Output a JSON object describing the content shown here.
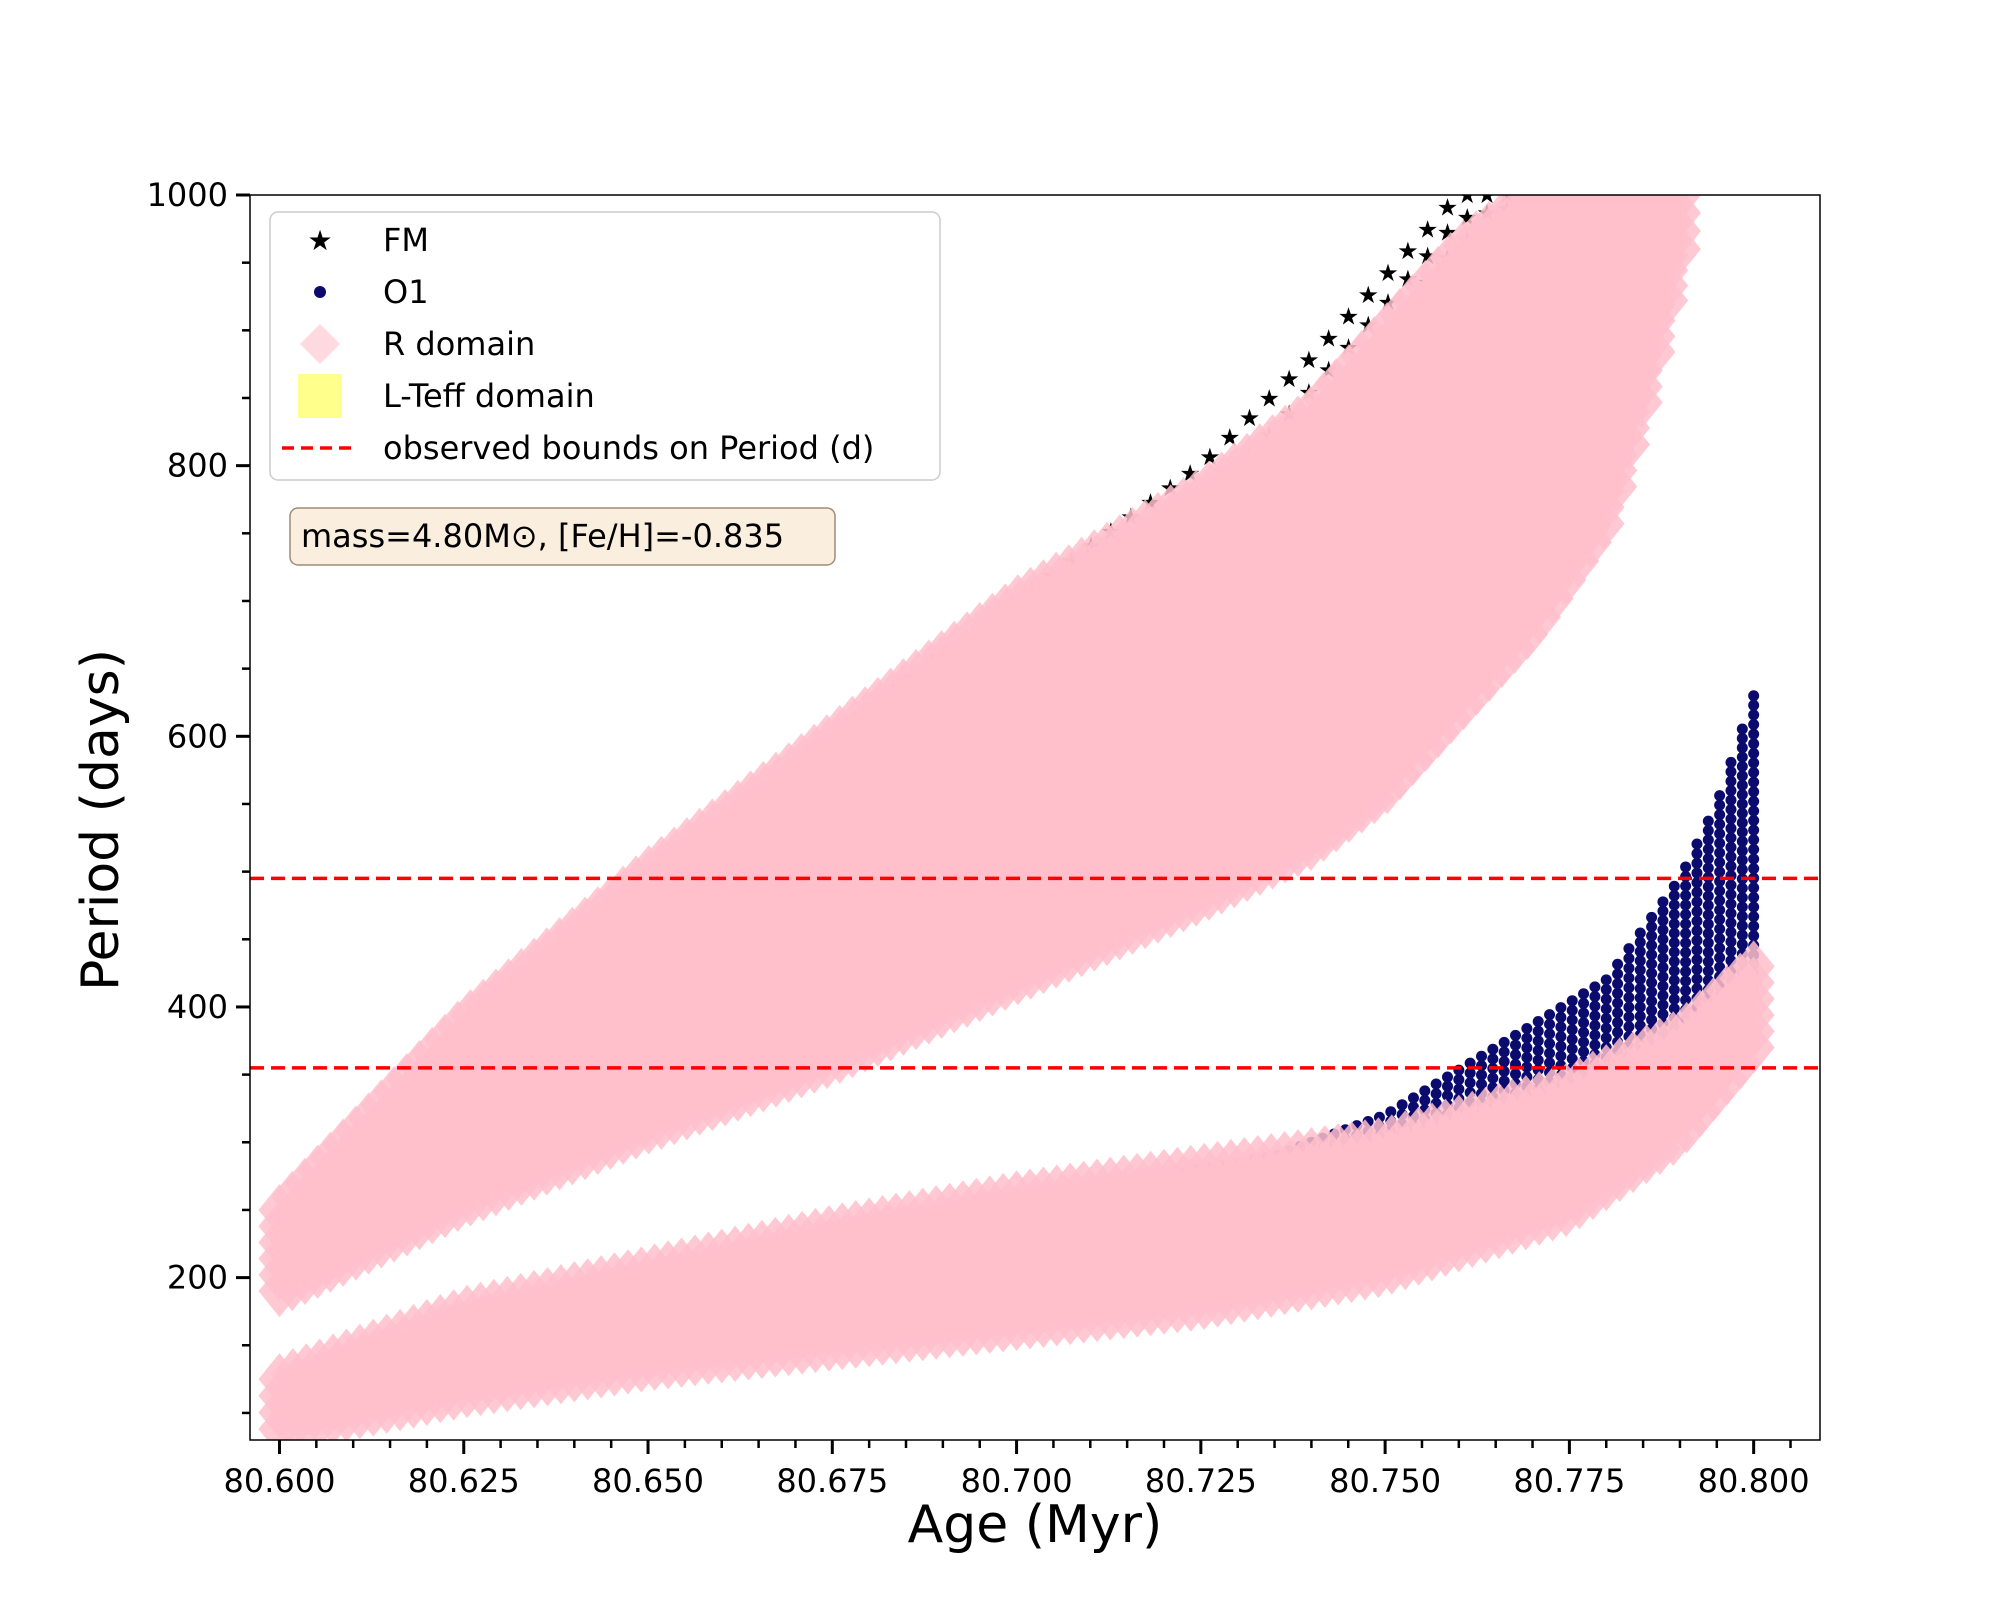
{
  "chart_data": {
    "type": "scatter",
    "xlabel": "Age (Myr)",
    "ylabel": "Period (days)",
    "xlim": [
      80.596,
      80.809
    ],
    "ylim": [
      80,
      1000
    ],
    "x_ticks": [
      80.6,
      80.625,
      80.65,
      80.675,
      80.7,
      80.725,
      80.75,
      80.775,
      80.8
    ],
    "x_tick_labels": [
      "80.600",
      "80.625",
      "80.650",
      "80.675",
      "80.700",
      "80.725",
      "80.750",
      "80.775",
      "80.800"
    ],
    "y_ticks": [
      200,
      400,
      600,
      800,
      1000
    ],
    "y_tick_labels": [
      "200",
      "400",
      "600",
      "800",
      "1000"
    ],
    "grid": false,
    "legend_position": "upper-left",
    "legend": [
      {
        "label": "FM",
        "marker": "star",
        "color": "#000000"
      },
      {
        "label": "O1",
        "marker": "circle",
        "color": "#0b0b6e"
      },
      {
        "label": "R domain",
        "marker": "diamond",
        "color": "#ffc0cb"
      },
      {
        "label": "L-Teff domain",
        "marker": "square",
        "color": "#ffff80"
      },
      {
        "label": "observed bounds on Period (d)",
        "marker": "dashed-line",
        "color": "#ff0000"
      }
    ],
    "annotation": "mass=4.80M⊙, [Fe/H]=-0.835",
    "hlines": [
      {
        "y": 495,
        "label": "observed bounds on Period (d)",
        "color": "#ff0000"
      },
      {
        "y": 355,
        "label": "observed bounds on Period (d)",
        "color": "#ff0000"
      }
    ],
    "series": [
      {
        "name": "FM",
        "color": "#000000",
        "x": [
          80.6,
          80.625,
          80.65,
          80.675,
          80.7,
          80.725,
          80.74,
          80.75,
          80.76,
          80.77,
          80.78,
          80.788
        ],
        "y_min": [
          195,
          265,
          350,
          430,
          520,
          640,
          760,
          830,
          910,
          970,
          1000,
          1000
        ],
        "y_max": [
          245,
          385,
          495,
          600,
          700,
          800,
          880,
          940,
          1000,
          1000,
          1000,
          1000
        ]
      },
      {
        "name": "O1",
        "color": "#0b0b6e",
        "x": [
          80.6,
          80.625,
          80.65,
          80.675,
          80.7,
          80.72,
          80.735,
          80.75,
          80.765,
          80.78,
          80.79,
          80.795,
          80.8
        ],
        "y_min": [
          90,
          130,
          150,
          170,
          190,
          210,
          225,
          245,
          270,
          320,
          345,
          370,
          410
        ],
        "y_max": [
          125,
          175,
          200,
          225,
          250,
          275,
          290,
          320,
          370,
          420,
          495,
          550,
          630
        ]
      },
      {
        "name": "R domain",
        "color": "#ffc0cb",
        "x": [
          80.6,
          80.625,
          80.65,
          80.675,
          80.7,
          80.725,
          80.74,
          80.75,
          80.76,
          80.77,
          80.78,
          80.785,
          80.79
        ],
        "y_min": [
          190,
          255,
          310,
          360,
          420,
          480,
          520,
          560,
          620,
          680,
          760,
          850,
          960
        ],
        "y_max": [
          250,
          390,
          500,
          600,
          700,
          780,
          840,
          900,
          960,
          1000,
          1000,
          1000,
          1000
        ]
      },
      {
        "name": "R domain",
        "color": "#ffc0cb",
        "x": [
          80.6,
          80.625,
          80.65,
          80.675,
          80.7,
          80.725,
          80.75,
          80.775,
          80.79,
          80.8
        ],
        "y_min": [
          88,
          115,
          135,
          150,
          165,
          180,
          205,
          250,
          305,
          370
        ],
        "y_max": [
          125,
          175,
          205,
          235,
          260,
          280,
          300,
          340,
          380,
          430
        ]
      }
    ]
  }
}
